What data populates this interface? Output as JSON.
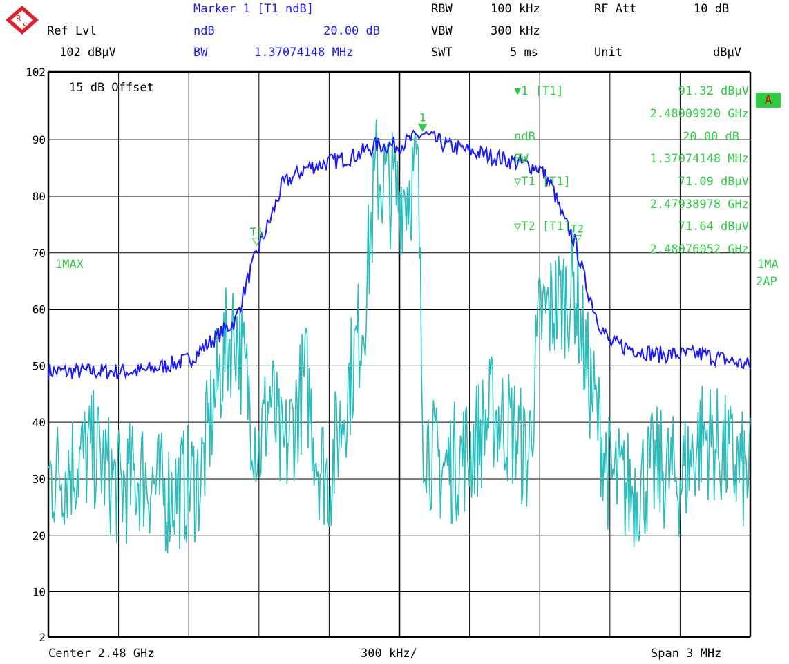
{
  "header": {
    "brand": "R&S",
    "ref_lvl_label": "Ref Lvl",
    "ref_lvl_value": "102 dBμV",
    "marker_title": "Marker 1 [T1 ndB]",
    "ndb_label": "ndB",
    "ndb_value": "20.00 dB",
    "bw_label": "BW",
    "bw_value": "1.37074148 MHz",
    "rbw_label": "RBW",
    "rbw_value": "100 kHz",
    "vbw_label": "VBW",
    "vbw_value": "300 kHz",
    "swt_label": "SWT",
    "swt_value": "5 ms",
    "rfatt_label": "RF Att",
    "rfatt_value": "10 dB",
    "unit_label": "Unit",
    "unit_value": "dBμV"
  },
  "side": {
    "badge": "A",
    "trace1": "1MA",
    "trace2": "2AP",
    "max_label": "1MAX"
  },
  "plot_labels": {
    "offset": "15 dB Offset"
  },
  "marker_table": {
    "m1_label": "▼1 [T1]",
    "m1_level": "91.32 dBμV",
    "m1_freq": "2.48009920 GHz",
    "ndb_label": "ndB",
    "ndb_value": "20.00 dB",
    "bw_label": "BW",
    "bw_value": "1.37074148 MHz",
    "t1_label": "▽T1 [T1]",
    "t1_level": "71.09 dBμV",
    "t1_freq": "2.47938978 GHz",
    "t2_label": "▽T2 [T1]",
    "t2_level": "71.64 dBμV",
    "t2_freq": "2.48076052 GHz"
  },
  "footer": {
    "center": "Center 2.48 GHz",
    "div": "300 kHz/",
    "span": "Span 3 MHz"
  },
  "colors": {
    "max_trace": "#1a1aff",
    "avg_trace": "#2bbcbc",
    "marker": "#2ecc40",
    "grid": "#000000"
  },
  "chart_data": {
    "type": "line",
    "xlim": [
      2.4785,
      2.4815
    ],
    "ylim": [
      2,
      102
    ],
    "ytick_labels": [
      "102",
      "90",
      "80",
      "70",
      "60",
      "50",
      "40",
      "30",
      "20",
      "10",
      "2"
    ],
    "grid": true,
    "markers": [
      {
        "name": "1",
        "freq_ghz": 2.4800992,
        "level": 91.32
      },
      {
        "name": "T1",
        "freq_ghz": 2.47938978,
        "level": 71.09
      },
      {
        "name": "T2",
        "freq_ghz": 2.48076052,
        "level": 71.64
      }
    ],
    "series": [
      {
        "name": "1MAX",
        "x": [
          2.4785,
          2.4787,
          2.4789,
          2.4791,
          2.4793,
          2.47935,
          2.4794,
          2.47945,
          2.4795,
          2.4796,
          2.4797,
          2.4798,
          2.4799,
          2.48,
          2.4801,
          2.4802,
          2.4803,
          2.4804,
          2.4805,
          2.4806,
          2.48065,
          2.4807,
          2.48075,
          2.4808,
          2.48085,
          2.4809,
          2.4811,
          2.4813,
          2.4815
        ],
        "y": [
          49,
          49,
          49,
          51,
          58,
          65,
          71,
          76,
          82,
          85,
          86,
          87,
          89,
          89,
          91,
          89,
          88,
          87,
          86,
          85,
          82,
          76,
          72,
          64,
          58,
          54,
          52,
          52,
          50
        ]
      },
      {
        "name": "2AP",
        "x": [
          2.4785,
          2.4787,
          2.4788,
          2.4789,
          2.479,
          2.47915,
          2.4792,
          2.47925,
          2.4793,
          2.4794,
          2.47945,
          2.4795,
          2.4796,
          2.47965,
          2.4797,
          2.47985,
          2.4799,
          2.48,
          2.48008,
          2.4801,
          2.48015,
          2.4802,
          2.4803,
          2.4804,
          2.4805,
          2.48055,
          2.4806,
          2.48075,
          2.4808,
          2.4809,
          2.481,
          2.4811,
          2.4812,
          2.4813,
          2.4814,
          2.4815
        ],
        "y": [
          30,
          35,
          28,
          31,
          27,
          30,
          42,
          52,
          57,
          35,
          45,
          33,
          48,
          34,
          30,
          60,
          84,
          80,
          84,
          40,
          33,
          32,
          35,
          42,
          38,
          33,
          58,
          64,
          50,
          30,
          28,
          32,
          30,
          38,
          34,
          30
        ]
      }
    ]
  }
}
